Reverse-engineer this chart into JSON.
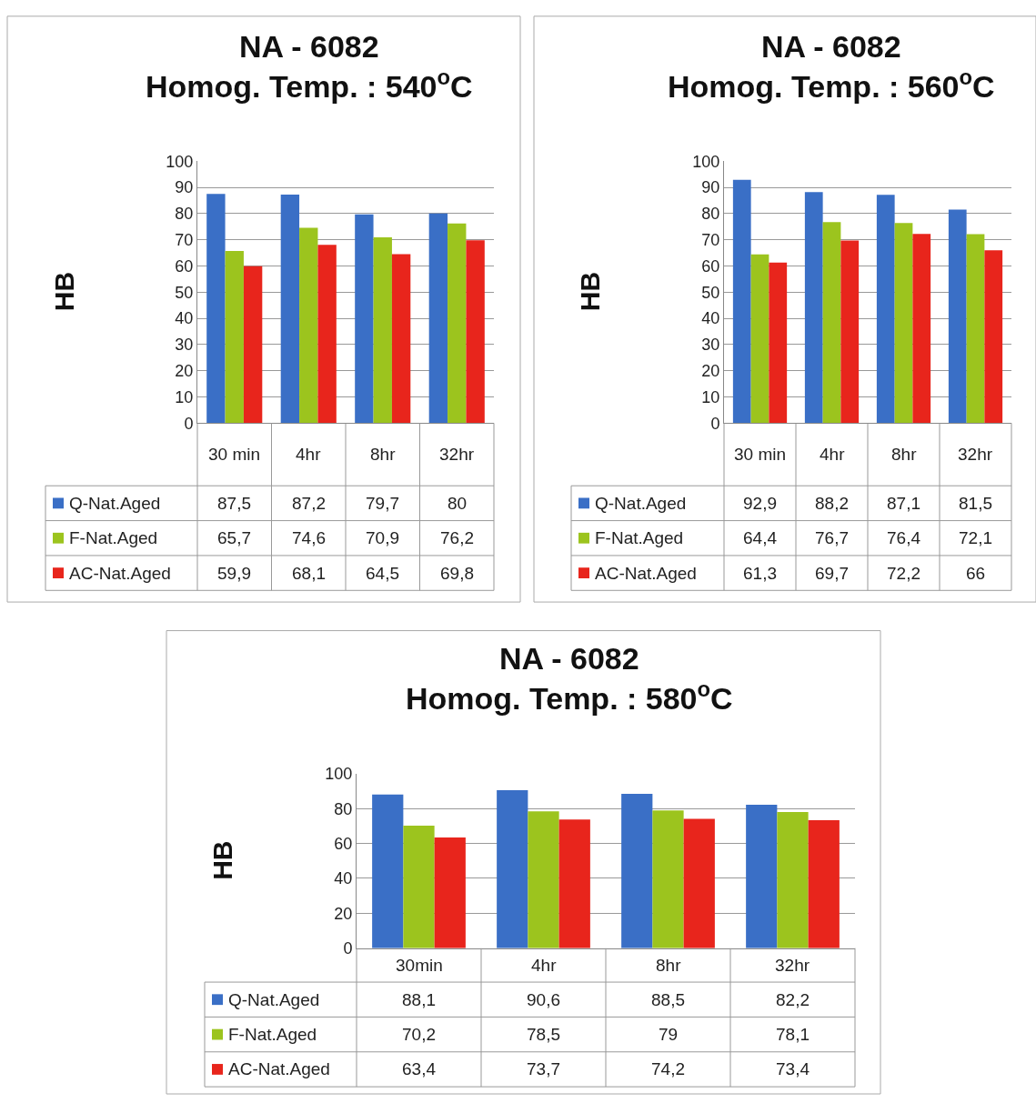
{
  "chart_data": [
    {
      "type": "bar",
      "title": "NA - 6082\nHomog. Temp. : 540$^{o}$C",
      "ylabel": "HB",
      "categories": [
        "30 min",
        "4hr",
        "8hr",
        "32hr"
      ],
      "ylim": [
        0,
        100
      ],
      "yticks": [
        0,
        10,
        20,
        30,
        40,
        50,
        60,
        70,
        80,
        90,
        100
      ],
      "grid": "y",
      "legend": "bottom",
      "series": [
        {
          "name": "Q-Nat.Aged",
          "color": "#3a6fc6",
          "values": [
            87.5,
            87.2,
            79.7,
            80
          ],
          "value_labels": [
            "87,5",
            "87,2",
            "79,7",
            "80"
          ]
        },
        {
          "name": "F-Nat.Aged",
          "color": "#9cc41e",
          "values": [
            65.7,
            74.6,
            70.9,
            76.2
          ],
          "value_labels": [
            "65,7",
            "74,6",
            "70,9",
            "76,2"
          ]
        },
        {
          "name": "AC-Nat.Aged",
          "color": "#e8251c",
          "values": [
            59.9,
            68.1,
            64.5,
            69.8
          ],
          "value_labels": [
            "59,9",
            "68,1",
            "64,5",
            "69,8"
          ]
        }
      ]
    },
    {
      "type": "bar",
      "title": "NA - 6082\nHomog. Temp. : 560$^{o}$C",
      "ylabel": "HB",
      "categories": [
        "30 min",
        "4hr",
        "8hr",
        "32hr"
      ],
      "ylim": [
        0,
        100
      ],
      "yticks": [
        0,
        10,
        20,
        30,
        40,
        50,
        60,
        70,
        80,
        90,
        100
      ],
      "grid": "y",
      "legend": "bottom",
      "series": [
        {
          "name": "Q-Nat.Aged",
          "color": "#3a6fc6",
          "values": [
            92.9,
            88.2,
            87.1,
            81.5
          ],
          "value_labels": [
            "92,9",
            "88,2",
            "87,1",
            "81,5"
          ]
        },
        {
          "name": "F-Nat.Aged",
          "color": "#9cc41e",
          "values": [
            64.4,
            76.7,
            76.4,
            72.1
          ],
          "value_labels": [
            "64,4",
            "76,7",
            "76,4",
            "72,1"
          ]
        },
        {
          "name": "AC-Nat.Aged",
          "color": "#e8251c",
          "values": [
            61.3,
            69.7,
            72.2,
            66
          ],
          "value_labels": [
            "61,3",
            "69,7",
            "72,2",
            "66"
          ]
        }
      ]
    },
    {
      "type": "bar",
      "title": "NA - 6082\nHomog. Temp. : 580$^{o}$C",
      "ylabel": "HB",
      "categories": [
        "30min",
        "4hr",
        "8hr",
        "32hr"
      ],
      "ylim": [
        0,
        100
      ],
      "yticks": [
        0,
        20,
        40,
        60,
        80,
        100
      ],
      "grid": "y",
      "legend": "bottom",
      "series": [
        {
          "name": "Q-Nat.Aged",
          "color": "#3a6fc6",
          "values": [
            88.1,
            90.6,
            88.5,
            82.2
          ],
          "value_labels": [
            "88,1",
            "90,6",
            "88,5",
            "82,2"
          ]
        },
        {
          "name": "F-Nat.Aged",
          "color": "#9cc41e",
          "values": [
            70.2,
            78.5,
            79,
            78.1
          ],
          "value_labels": [
            "70,2",
            "78,5",
            "79",
            "78,1"
          ]
        },
        {
          "name": "AC-Nat.Aged",
          "color": "#e8251c",
          "values": [
            63.4,
            73.7,
            74.2,
            73.4
          ],
          "value_labels": [
            "63,4",
            "73,7",
            "74,2",
            "73,4"
          ]
        }
      ]
    }
  ]
}
